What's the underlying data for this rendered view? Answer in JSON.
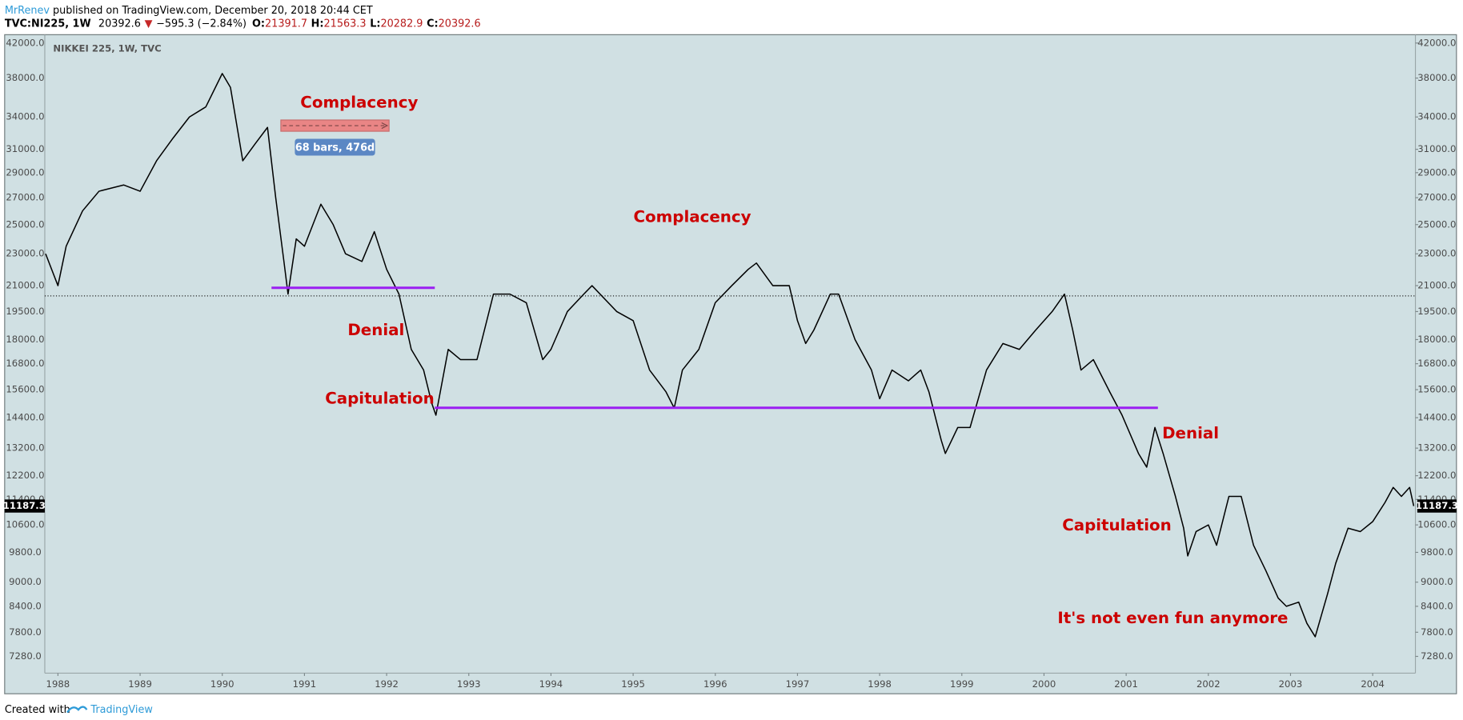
{
  "header": {
    "author": "MrRenev",
    "published": "published on TradingView.com, December 20, 2018 20:44 CET",
    "symbol": "TVC:NI225, 1W",
    "price": 20392.6,
    "change": "−595.3 (−2.84%)",
    "ohlc_labels": [
      "O:",
      "H:",
      "L:",
      "C:"
    ],
    "ohlc": [
      21391.7,
      21563.3,
      20282.9,
      20392.6
    ]
  },
  "footer": {
    "text": "Created with",
    "brand": "TradingView"
  },
  "chart_data": {
    "type": "line",
    "title": "NIKKEI 225, 1W, TVC",
    "log_scale": true,
    "grid": false,
    "xlim": [
      1987.84,
      2004.52
    ],
    "xticks": [
      1988,
      1989,
      1990,
      1991,
      1992,
      1993,
      1994,
      1995,
      1996,
      1997,
      1998,
      1999,
      2000,
      2001,
      2002,
      2003,
      2004
    ],
    "ylim": [
      6940,
      42900
    ],
    "yticks": [
      {
        "value": 7280,
        "label": "7280.0"
      },
      {
        "value": 7800,
        "label": "7800.0"
      },
      {
        "value": 8400,
        "label": "8400.0"
      },
      {
        "value": 9000,
        "label": "9000.0"
      },
      {
        "value": 9800,
        "label": "9800.0"
      },
      {
        "value": 10600,
        "label": "10600.0"
      },
      {
        "value": 11400,
        "label": "11400.0"
      },
      {
        "value": 12200,
        "label": "12200.0"
      },
      {
        "value": 13200,
        "label": "13200.0"
      },
      {
        "value": 14400,
        "label": "14400.0"
      },
      {
        "value": 15600,
        "label": "15600.0"
      },
      {
        "value": 16800,
        "label": "16800.0"
      },
      {
        "value": 18000,
        "label": "18000.0"
      },
      {
        "value": 19500,
        "label": "19500.0"
      },
      {
        "value": 21000,
        "label": "21000.0"
      },
      {
        "value": 23000,
        "label": "23000.0"
      },
      {
        "value": 25000,
        "label": "25000.0"
      },
      {
        "value": 27000,
        "label": "27000.0"
      },
      {
        "value": 29000,
        "label": "29000.0"
      },
      {
        "value": 31000,
        "label": "31000.0"
      },
      {
        "value": 34000,
        "label": "34000.0"
      },
      {
        "value": 38000,
        "label": "38000.0"
      },
      {
        "value": 42000,
        "label": "42000.0"
      }
    ],
    "series": [
      {
        "name": "NI225",
        "color": "#000000",
        "x": [
          1987.85,
          1988.0,
          1988.1,
          1988.3,
          1988.5,
          1988.8,
          1989.0,
          1989.2,
          1989.4,
          1989.6,
          1989.8,
          1990.0,
          1990.1,
          1990.25,
          1990.4,
          1990.55,
          1990.65,
          1990.75,
          1990.8,
          1990.9,
          1991.0,
          1991.2,
          1991.35,
          1991.5,
          1991.7,
          1991.85,
          1992.0,
          1992.15,
          1992.3,
          1992.45,
          1992.55,
          1992.6,
          1992.75,
          1992.9,
          1993.1,
          1993.3,
          1993.5,
          1993.7,
          1993.9,
          1994.0,
          1994.2,
          1994.4,
          1994.5,
          1994.8,
          1995.0,
          1995.2,
          1995.4,
          1995.5,
          1995.6,
          1995.8,
          1996.0,
          1996.2,
          1996.4,
          1996.5,
          1996.7,
          1996.9,
          1997.0,
          1997.1,
          1997.2,
          1997.4,
          1997.5,
          1997.7,
          1997.9,
          1998.0,
          1998.15,
          1998.35,
          1998.5,
          1998.6,
          1998.75,
          1998.8,
          1998.95,
          1999.1,
          1999.3,
          1999.5,
          1999.7,
          1999.9,
          2000.1,
          2000.25,
          2000.35,
          2000.45,
          2000.6,
          2000.8,
          2000.95,
          2001.15,
          2001.25,
          2001.35,
          2001.45,
          2001.6,
          2001.7,
          2001.75,
          2001.85,
          2002.0,
          2002.1,
          2002.25,
          2002.4,
          2002.55,
          2002.7,
          2002.85,
          2002.95,
          2003.1,
          2003.2,
          2003.3,
          2003.45,
          2003.55,
          2003.7,
          2003.85,
          2004.0,
          2004.15,
          2004.25,
          2004.35,
          2004.45,
          2004.5
        ],
        "values": [
          23000,
          21000,
          23500,
          26000,
          27500,
          28000,
          27500,
          30000,
          32000,
          34000,
          35000,
          38500,
          37000,
          30000,
          31500,
          33000,
          27000,
          22500,
          20500,
          24000,
          23500,
          26500,
          25000,
          23000,
          22500,
          24500,
          22000,
          20500,
          17500,
          16500,
          15000,
          14500,
          17500,
          17000,
          17000,
          20500,
          20500,
          20000,
          17000,
          17500,
          19500,
          20500,
          21000,
          19500,
          19000,
          16500,
          15500,
          14800,
          16500,
          17500,
          20000,
          21000,
          22000,
          22400,
          21000,
          21000,
          19000,
          17800,
          18500,
          20500,
          20500,
          18000,
          16500,
          15200,
          16500,
          16000,
          16500,
          15500,
          13500,
          13000,
          14000,
          14000,
          16500,
          17800,
          17500,
          18500,
          19500,
          20500,
          18500,
          16500,
          17000,
          15500,
          14500,
          13000,
          12500,
          14000,
          13000,
          11500,
          10500,
          9700,
          10400,
          10600,
          10000,
          11500,
          11500,
          10000,
          9300,
          8600,
          8400,
          8500,
          8000,
          7700,
          8700,
          9500,
          10500,
          10400,
          10700,
          11300,
          11800,
          11500,
          11800,
          11187.3
        ]
      }
    ],
    "annotations": [
      "Complacency",
      "Complacency",
      "Denial",
      "Capitulation",
      "Denial",
      "Capitulation",
      "It's not even fun anymore"
    ],
    "measure": "68 bars, 476d"
  }
}
